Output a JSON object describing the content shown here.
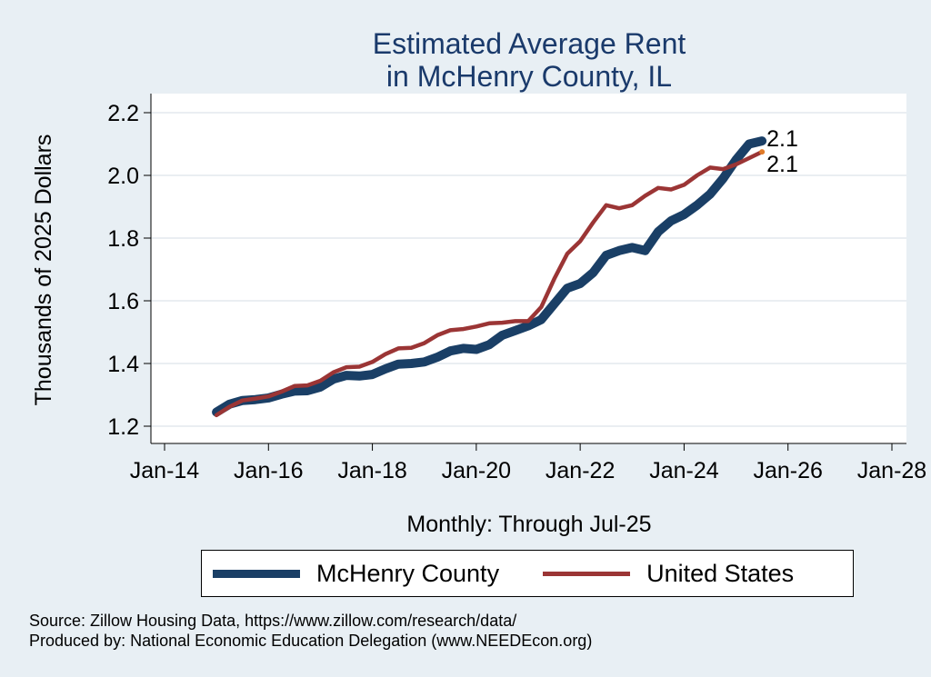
{
  "title": {
    "line1": "Estimated Average Rent",
    "line2": "in McHenry County, IL"
  },
  "chart_data": {
    "type": "line",
    "title": "Estimated Average Rent in McHenry County, IL",
    "xlabel": "Monthly: Through Jul-25",
    "ylabel": "Thousands of 2025 Dollars",
    "xlim": [
      "2014-01",
      "2028-01"
    ],
    "ylim": [
      1.2,
      2.2
    ],
    "x_ticks": [
      "Jan-14",
      "Jan-16",
      "Jan-18",
      "Jan-20",
      "Jan-22",
      "Jan-24",
      "Jan-26",
      "Jan-28"
    ],
    "y_ticks": [
      "1.2",
      "1.4",
      "1.6",
      "1.8",
      "2.0",
      "2.2"
    ],
    "grid": true,
    "legend": "bottom",
    "series": [
      {
        "name": "McHenry County",
        "color": "#1a3f66",
        "end_label": "2.1",
        "points": [
          [
            "2015-01",
            1.245
          ],
          [
            "2015-04",
            1.27
          ],
          [
            "2015-07",
            1.282
          ],
          [
            "2015-10",
            1.285
          ],
          [
            "2016-01",
            1.29
          ],
          [
            "2016-04",
            1.302
          ],
          [
            "2016-07",
            1.312
          ],
          [
            "2016-10",
            1.313
          ],
          [
            "2017-01",
            1.325
          ],
          [
            "2017-04",
            1.35
          ],
          [
            "2017-07",
            1.362
          ],
          [
            "2017-10",
            1.36
          ],
          [
            "2018-01",
            1.365
          ],
          [
            "2018-04",
            1.383
          ],
          [
            "2018-07",
            1.398
          ],
          [
            "2018-10",
            1.4
          ],
          [
            "2019-01",
            1.405
          ],
          [
            "2019-04",
            1.42
          ],
          [
            "2019-07",
            1.44
          ],
          [
            "2019-10",
            1.448
          ],
          [
            "2020-01",
            1.445
          ],
          [
            "2020-04",
            1.46
          ],
          [
            "2020-07",
            1.49
          ],
          [
            "2020-10",
            1.505
          ],
          [
            "2021-01",
            1.52
          ],
          [
            "2021-04",
            1.54
          ],
          [
            "2021-07",
            1.59
          ],
          [
            "2021-10",
            1.64
          ],
          [
            "2022-01",
            1.655
          ],
          [
            "2022-04",
            1.69
          ],
          [
            "2022-07",
            1.745
          ],
          [
            "2022-10",
            1.76
          ],
          [
            "2023-01",
            1.77
          ],
          [
            "2023-04",
            1.76
          ],
          [
            "2023-07",
            1.82
          ],
          [
            "2023-10",
            1.855
          ],
          [
            "2024-01",
            1.875
          ],
          [
            "2024-04",
            1.905
          ],
          [
            "2024-07",
            1.94
          ],
          [
            "2024-10",
            1.99
          ],
          [
            "2025-01",
            2.05
          ],
          [
            "2025-04",
            2.1
          ],
          [
            "2025-07",
            2.11
          ]
        ]
      },
      {
        "name": "United States",
        "color": "#9b3535",
        "end_label": "2.1",
        "points": [
          [
            "2015-01",
            1.235
          ],
          [
            "2015-04",
            1.262
          ],
          [
            "2015-07",
            1.282
          ],
          [
            "2015-10",
            1.288
          ],
          [
            "2016-01",
            1.295
          ],
          [
            "2016-04",
            1.31
          ],
          [
            "2016-07",
            1.328
          ],
          [
            "2016-10",
            1.33
          ],
          [
            "2017-01",
            1.345
          ],
          [
            "2017-04",
            1.372
          ],
          [
            "2017-07",
            1.388
          ],
          [
            "2017-10",
            1.39
          ],
          [
            "2018-01",
            1.405
          ],
          [
            "2018-04",
            1.43
          ],
          [
            "2018-07",
            1.448
          ],
          [
            "2018-10",
            1.45
          ],
          [
            "2019-01",
            1.465
          ],
          [
            "2019-04",
            1.49
          ],
          [
            "2019-07",
            1.506
          ],
          [
            "2019-10",
            1.51
          ],
          [
            "2020-01",
            1.518
          ],
          [
            "2020-04",
            1.528
          ],
          [
            "2020-07",
            1.53
          ],
          [
            "2020-10",
            1.535
          ],
          [
            "2021-01",
            1.535
          ],
          [
            "2021-04",
            1.58
          ],
          [
            "2021-07",
            1.67
          ],
          [
            "2021-10",
            1.75
          ],
          [
            "2022-01",
            1.79
          ],
          [
            "2022-04",
            1.85
          ],
          [
            "2022-07",
            1.905
          ],
          [
            "2022-10",
            1.895
          ],
          [
            "2023-01",
            1.905
          ],
          [
            "2023-04",
            1.935
          ],
          [
            "2023-07",
            1.96
          ],
          [
            "2023-10",
            1.955
          ],
          [
            "2024-01",
            1.97
          ],
          [
            "2024-04",
            2.0
          ],
          [
            "2024-07",
            2.025
          ],
          [
            "2024-10",
            2.02
          ],
          [
            "2025-01",
            2.035
          ],
          [
            "2025-04",
            2.055
          ],
          [
            "2025-07",
            2.075
          ]
        ]
      }
    ]
  },
  "source": {
    "line1": "Source: Zillow Housing Data, https://www.zillow.com/research/data/",
    "line2": "Produced by: National Economic Education Delegation (www.NEEDEcon.org)"
  }
}
